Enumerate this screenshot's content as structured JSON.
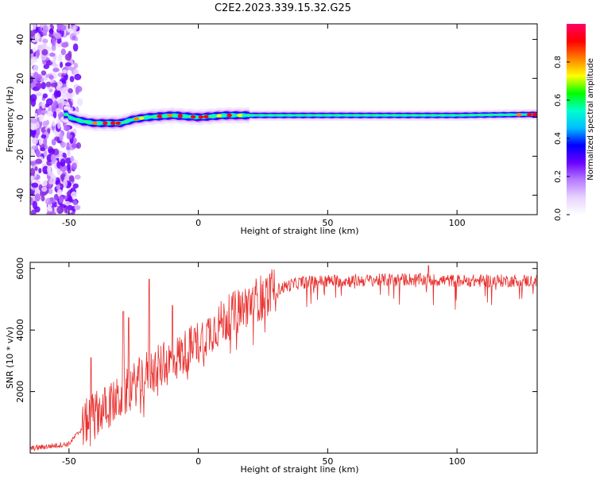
{
  "title": "C2E2.2023.339.15.32.G25",
  "chart_data": [
    {
      "type": "heatmap",
      "xlabel": "Height of straight line (km)",
      "ylabel": "Frequency (Hz)",
      "xlim": [
        -65,
        131
      ],
      "ylim": [
        -50,
        48
      ],
      "xticks": [
        -50,
        0,
        50,
        100
      ],
      "yticks": [
        -40,
        -20,
        0,
        20,
        40
      ],
      "colorbar": {
        "label": "Normalized spectral amplitude",
        "range": [
          0,
          1
        ],
        "ticks": [
          "0.0",
          "0.2",
          "0.4",
          "0.6",
          "0.8"
        ],
        "colors": [
          "#ffffff",
          "#e8d2ff",
          "#b67cff",
          "#6a00ff",
          "#0000ff",
          "#00bfff",
          "#00ffcc",
          "#00ff00",
          "#ffff00",
          "#ff8000",
          "#ff0000",
          "#ff0066"
        ]
      },
      "ridge": {
        "description_points_height_km": [
          -50,
          -45,
          -40,
          -35,
          -30,
          -25,
          -20,
          -15,
          -10,
          -5,
          0,
          5,
          10,
          20,
          50,
          100,
          131
        ],
        "frequency_hz": [
          0,
          -2,
          -3,
          -3,
          -3,
          -1,
          0,
          0.5,
          1,
          0.5,
          0,
          0.5,
          1,
          1,
          1,
          1,
          1.5
        ]
      },
      "noise_region_km": [
        -65,
        -45
      ],
      "grid": false
    },
    {
      "type": "line",
      "xlabel": "Height of straight line (km)",
      "ylabel": "SNR (10 * v/v)",
      "xlim": [
        -65,
        131
      ],
      "ylim": [
        0,
        6200
      ],
      "xticks": [
        -50,
        0,
        50,
        100
      ],
      "yticks": [
        2000,
        4000,
        6000
      ],
      "grid": false,
      "series": [
        {
          "color": "#e8302e",
          "envelope_x": [
            -65,
            -50,
            -45,
            -42,
            -40,
            -35,
            -30,
            -25,
            -20,
            -15,
            -10,
            -5,
            0,
            5,
            10,
            15,
            20,
            25,
            30,
            35,
            40,
            50,
            60,
            80,
            100,
            120,
            131
          ],
          "envelope_y": [
            150,
            300,
            800,
            1200,
            1300,
            1500,
            1800,
            2200,
            2600,
            2800,
            3000,
            3300,
            3600,
            4000,
            4300,
            4600,
            4900,
            5100,
            5300,
            5450,
            5550,
            5600,
            5600,
            5650,
            5600,
            5600,
            5600
          ],
          "peaks": [
            {
              "x": -41.5,
              "y": 3100
            },
            {
              "x": -29,
              "y": 4600
            },
            {
              "x": -27,
              "y": 4400
            },
            {
              "x": -19,
              "y": 5650
            },
            {
              "x": -10,
              "y": 4800
            },
            {
              "x": 89,
              "y": 6100
            }
          ]
        }
      ]
    }
  ]
}
